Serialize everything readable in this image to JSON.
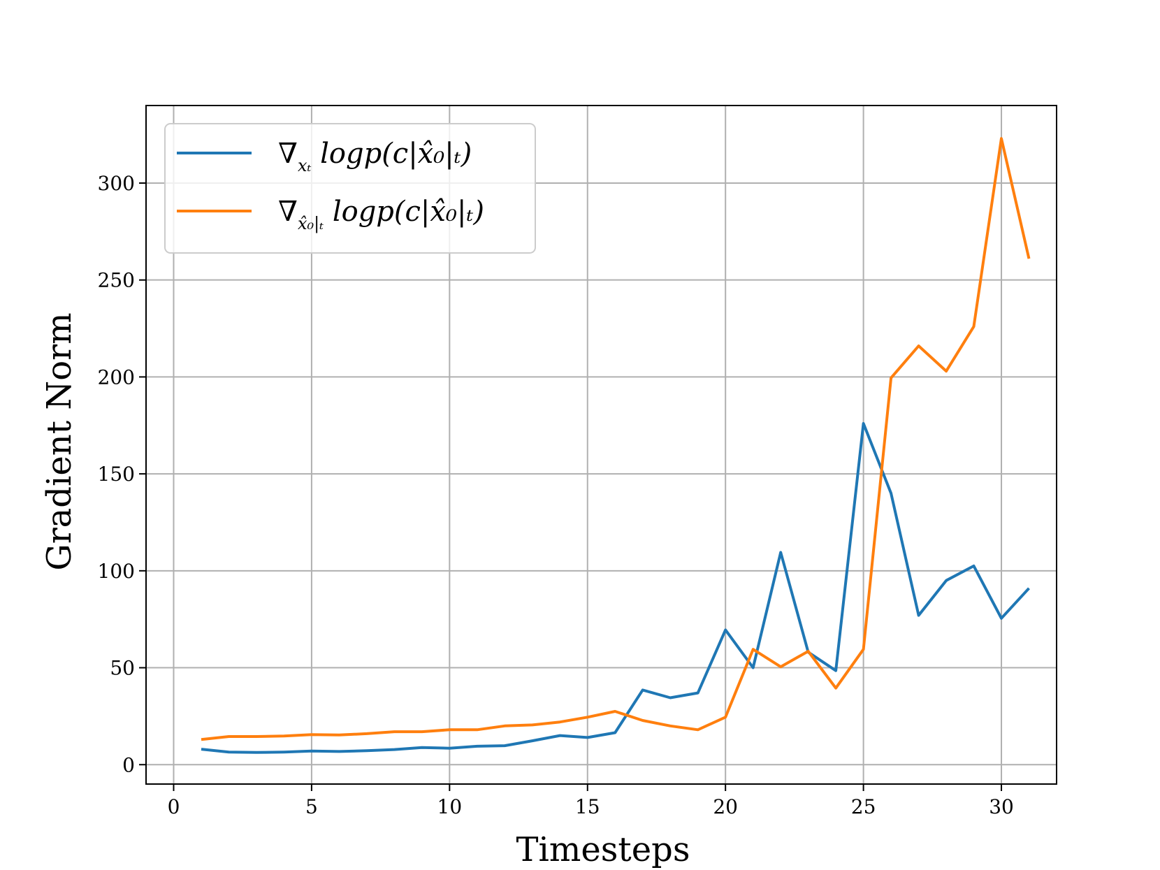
{
  "chart_data": {
    "type": "line",
    "xlabel": "Timesteps",
    "ylabel": "Gradient Norm",
    "xlim": [
      -1,
      32
    ],
    "ylim": [
      -10,
      340
    ],
    "xticks": [
      0,
      5,
      10,
      15,
      20,
      25,
      30
    ],
    "yticks": [
      0,
      50,
      100,
      150,
      200,
      250,
      300
    ],
    "grid": true,
    "legend_position": "upper-left",
    "x": [
      1,
      2,
      3,
      4,
      5,
      6,
      7,
      8,
      9,
      10,
      11,
      12,
      13,
      14,
      15,
      16,
      17,
      18,
      19,
      20,
      21,
      22,
      23,
      24,
      25,
      26,
      27,
      28,
      29,
      30,
      31
    ],
    "series": [
      {
        "name": "∇x_t logp(c|x̂_0|t)",
        "legend_main": "∇",
        "legend_sub": "xₜ",
        "legend_rest": " logp(c|x̂₀|ₜ)",
        "color": "#1f77b4",
        "values": [
          8,
          6.5,
          6.3,
          6.5,
          7,
          6.8,
          7.2,
          7.8,
          8.8,
          8.5,
          9.5,
          9.8,
          12.3,
          15,
          14,
          16.5,
          38.5,
          34.5,
          37,
          69.5,
          50,
          109.5,
          58,
          48.5,
          176,
          140,
          77,
          95,
          102.5,
          75.5,
          91
        ]
      },
      {
        "name": "∇x̂_0|t logp(c|x̂_0|t)",
        "legend_main": "∇",
        "legend_sub": "x̂₀|ₜ",
        "legend_rest": " logp(c|x̂₀|ₜ)",
        "color": "#ff7f0e",
        "values": [
          13,
          14.5,
          14.5,
          14.8,
          15.5,
          15.3,
          16,
          17,
          17,
          18,
          18,
          20,
          20.5,
          22,
          24.5,
          27.5,
          22.8,
          20,
          18,
          24.5,
          59.5,
          50.5,
          58.5,
          39.5,
          59.5,
          199.5,
          216,
          203,
          226,
          323,
          261
        ]
      }
    ]
  }
}
